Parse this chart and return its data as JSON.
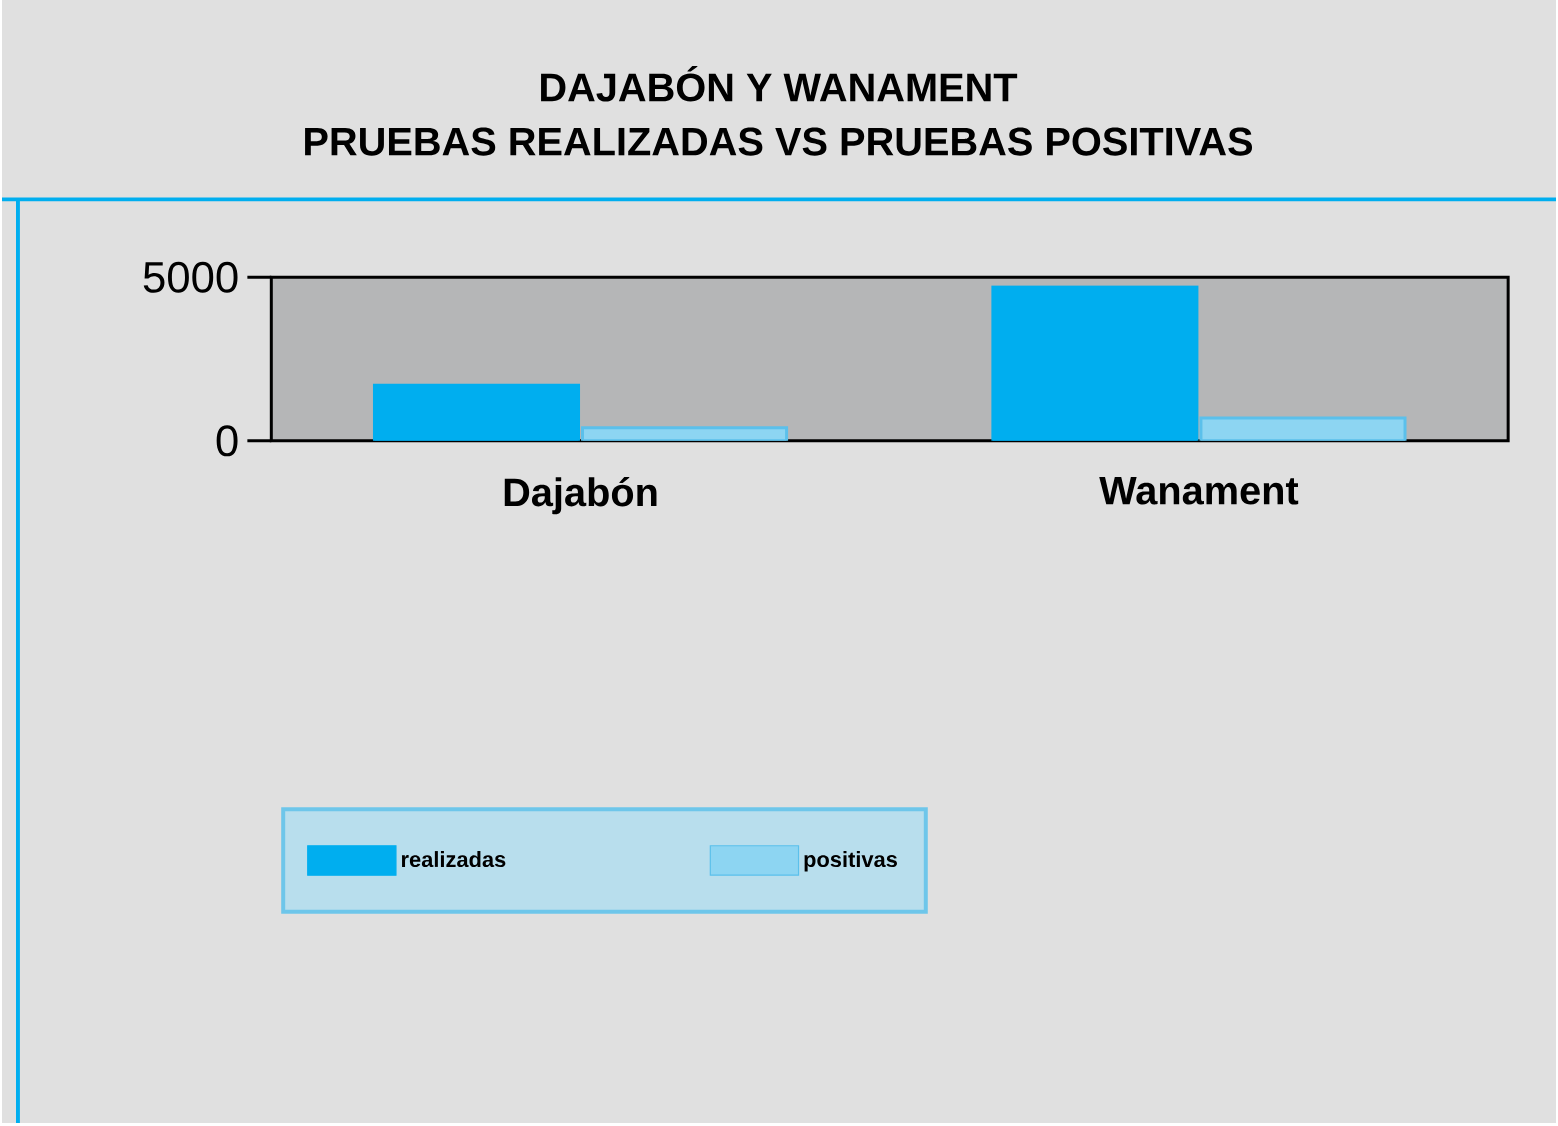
{
  "chart_data": {
    "type": "bar",
    "title": "DAJABÓN Y WANAMENT",
    "subtitle": "PRUEBAS REALIZADAS VS PRUEBAS POSITIVAS",
    "categories": [
      "Dajabón",
      "Wanament"
    ],
    "series": [
      {
        "name": "realizadas",
        "color": "#00aeef",
        "values": [
          1700,
          4700
        ]
      },
      {
        "name": "positivas",
        "color": "#8dd5f2",
        "values": [
          400,
          700
        ]
      }
    ],
    "ylim": [
      0,
      5000
    ],
    "yticks": [
      0,
      5000
    ],
    "legend": "bottom"
  }
}
